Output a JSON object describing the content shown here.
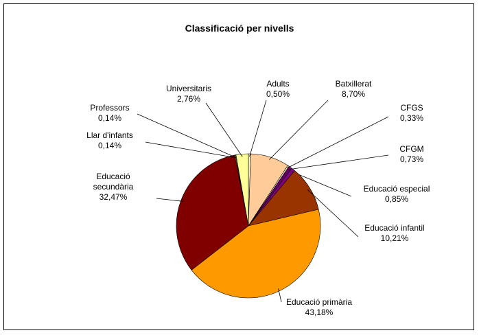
{
  "chart_data": {
    "type": "pie",
    "title": "Classificació per nivells",
    "categories": [
      "Adults",
      "Batxillerat",
      "CFGS",
      "CFGM",
      "Educació especial",
      "Educació infantil",
      "Educació primària",
      "Educació secundària",
      "Llar d'infants",
      "Professors",
      "Universitaris"
    ],
    "values": [
      0.5,
      8.7,
      0.33,
      0.73,
      0.85,
      10.21,
      43.18,
      32.47,
      0.14,
      0.14,
      2.76
    ],
    "value_labels": [
      "0,50%",
      "8,70%",
      "0,33%",
      "0,73%",
      "0,85%",
      "10,21%",
      "43,18%",
      "32,47%",
      "0,14%",
      "0,14%",
      "2,76%"
    ],
    "colors": [
      "#FFFFCC",
      "#FFCC99",
      "#FFFFCC",
      "#660066",
      "#800080",
      "#993300",
      "#FF9900",
      "#800000",
      "#FFFFCC",
      "#FFFFCC",
      "#FFFF99"
    ]
  }
}
